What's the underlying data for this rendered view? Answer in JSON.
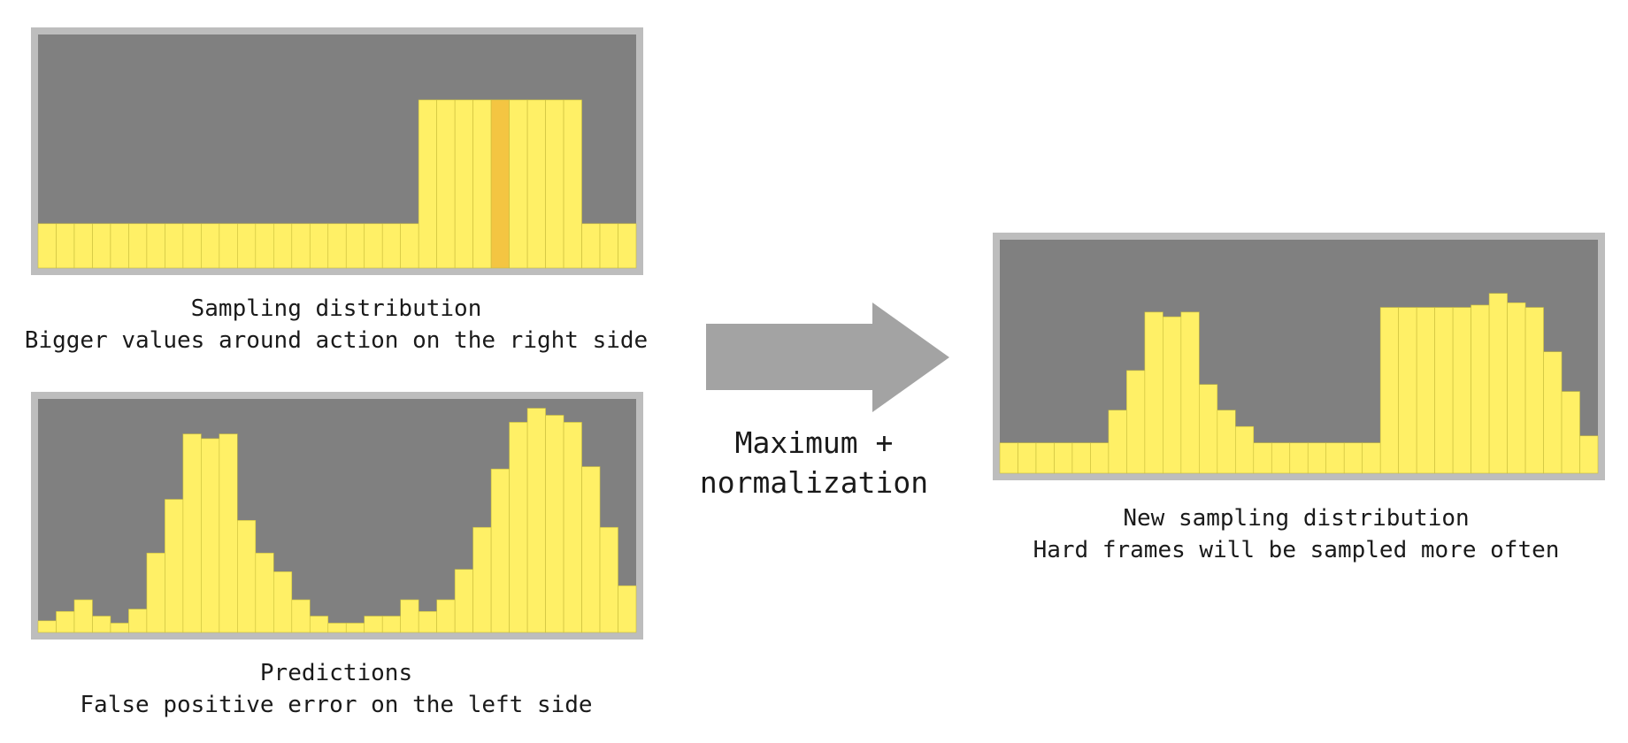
{
  "colors": {
    "panel_border": "#bdbdbd",
    "panel_bg": "#808080",
    "bar": "#fff066",
    "bar_highlight": "#f4c542",
    "bar_line": "#c9bd3c",
    "arrow": "#a3a3a3"
  },
  "panels": {
    "sampling": {
      "caption_title": "Sampling distribution",
      "caption_sub": "Bigger values around action on the right side"
    },
    "predictions": {
      "caption_title": "Predictions",
      "caption_sub": "False positive error on the left side"
    },
    "new_sampling": {
      "caption_title": "New sampling distribution",
      "caption_sub": "Hard frames will be sampled more often"
    }
  },
  "operation": {
    "line1": "Maximum +",
    "line2": "normalization"
  },
  "chart_data": [
    {
      "type": "bar",
      "bar_count": 33,
      "values": [
        0.19,
        0.19,
        0.19,
        0.19,
        0.19,
        0.19,
        0.19,
        0.19,
        0.19,
        0.19,
        0.19,
        0.19,
        0.19,
        0.19,
        0.19,
        0.19,
        0.19,
        0.19,
        0.19,
        0.19,
        0.19,
        0.72,
        0.72,
        0.72,
        0.72,
        0.72,
        0.72,
        0.72,
        0.72,
        0.72,
        0.19,
        0.19,
        0.19
      ],
      "highlight_index": 25
    },
    {
      "type": "bar",
      "bar_count": 33,
      "values": [
        0.05,
        0.09,
        0.14,
        0.07,
        0.04,
        0.1,
        0.34,
        0.57,
        0.85,
        0.83,
        0.85,
        0.48,
        0.34,
        0.26,
        0.14,
        0.07,
        0.04,
        0.04,
        0.07,
        0.07,
        0.14,
        0.09,
        0.14,
        0.27,
        0.45,
        0.7,
        0.9,
        0.96,
        0.93,
        0.9,
        0.71,
        0.45,
        0.2
      ],
      "highlight_index": null
    },
    {
      "type": "bar",
      "bar_count": 33,
      "values": [
        0.13,
        0.13,
        0.13,
        0.13,
        0.13,
        0.13,
        0.27,
        0.44,
        0.69,
        0.67,
        0.69,
        0.38,
        0.27,
        0.2,
        0.13,
        0.13,
        0.13,
        0.13,
        0.13,
        0.13,
        0.13,
        0.71,
        0.71,
        0.71,
        0.71,
        0.71,
        0.72,
        0.77,
        0.73,
        0.71,
        0.52,
        0.35,
        0.16
      ],
      "highlight_index": null
    }
  ]
}
